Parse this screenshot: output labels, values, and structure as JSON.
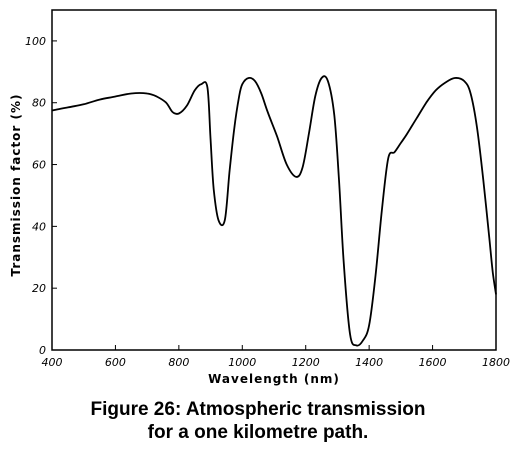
{
  "caption": {
    "line1": "Figure 26: Atmospheric transmission",
    "line2": "for a one kilometre path."
  },
  "chart_data": {
    "type": "line",
    "title": "",
    "xlabel": "Wavelength (nm)",
    "ylabel": "Transmission factor (%)",
    "xlim": [
      400,
      1800
    ],
    "ylim": [
      0,
      110
    ],
    "xticks": [
      400,
      600,
      800,
      1000,
      1200,
      1400,
      1600,
      1800
    ],
    "xtick_labels": [
      "400",
      "600",
      "800",
      "1000",
      "1200",
      "1400",
      "1600",
      "1800"
    ],
    "yticks": [
      0,
      20,
      40,
      60,
      80,
      100
    ],
    "ytick_labels": [
      "0",
      "20",
      "40",
      "60",
      "80",
      "100"
    ],
    "grid": false,
    "series": [
      {
        "x": [
          400,
          450,
          500,
          550,
          600,
          650,
          700,
          730,
          760,
          780,
          800,
          825,
          850,
          870,
          890,
          900,
          910,
          925,
          945,
          960,
          975,
          990,
          1000,
          1020,
          1040,
          1060,
          1080,
          1110,
          1140,
          1170,
          1190,
          1210,
          1230,
          1250,
          1270,
          1290,
          1305,
          1320,
          1340,
          1360,
          1380,
          1400,
          1420,
          1440,
          1460,
          1480,
          1500,
          1520,
          1550,
          1580,
          1610,
          1640,
          1670,
          1700,
          1720,
          1740,
          1760,
          1780,
          1790,
          1800
        ],
        "y": [
          77.5,
          78.5,
          79.5,
          81,
          82,
          83,
          83,
          82,
          80,
          77,
          76.5,
          79,
          84,
          86,
          85,
          68,
          52,
          42,
          42,
          58,
          72,
          82,
          86,
          88,
          87,
          83,
          77,
          69,
          60,
          56,
          59,
          70,
          82,
          88,
          87,
          76,
          55,
          28,
          5,
          1.5,
          3,
          8,
          24,
          45,
          62,
          64,
          67,
          70,
          75,
          80,
          84,
          86.5,
          88,
          87,
          83,
          72,
          55,
          35,
          25,
          18
        ]
      }
    ]
  }
}
